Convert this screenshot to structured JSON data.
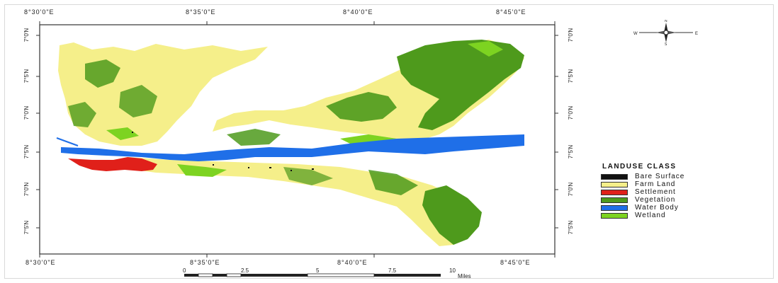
{
  "map": {
    "top_lon_ticks": [
      "8°30'0\"E",
      "8°35'0\"E",
      "8°40'0\"E",
      "8°45'0\"E"
    ],
    "bottom_lon_ticks": [
      "8°30'0\"E",
      "8°35'0\"E",
      "8°40'0\"E",
      "8°45'0\"E"
    ],
    "lat_ticks": [
      "7°0'N",
      "7°5'N",
      "7°0'N",
      "7°5'N",
      "7°0'N",
      "7°5'N"
    ],
    "class_colors": {
      "bare_surface": "#111111",
      "farm_land": "#f5ef8a",
      "settlement": "#e0201a",
      "vegetation": "#4e9a1c",
      "water_body": "#1f6fe8",
      "wetland": "#7dd321"
    }
  },
  "compass": {
    "n": "N",
    "s": "S",
    "e": "E",
    "w": "W"
  },
  "legend": {
    "title": "LANDUSE CLASS",
    "items": [
      {
        "label": " Bare Surface",
        "color": "#111111"
      },
      {
        "label": "Farm Land",
        "color": "#f5ef8a"
      },
      {
        "label": "Settlement",
        "color": "#e0201a"
      },
      {
        "label": "Vegetation",
        "color": "#4e9a1c"
      },
      {
        "label": "Water Body",
        "color": "#1f6fe8"
      },
      {
        "label": "Wetland",
        "color": "#7dd321"
      }
    ]
  },
  "scale": {
    "labels": [
      "0",
      "2.5",
      "5",
      "7.5",
      "10"
    ],
    "unit": "Miles"
  }
}
